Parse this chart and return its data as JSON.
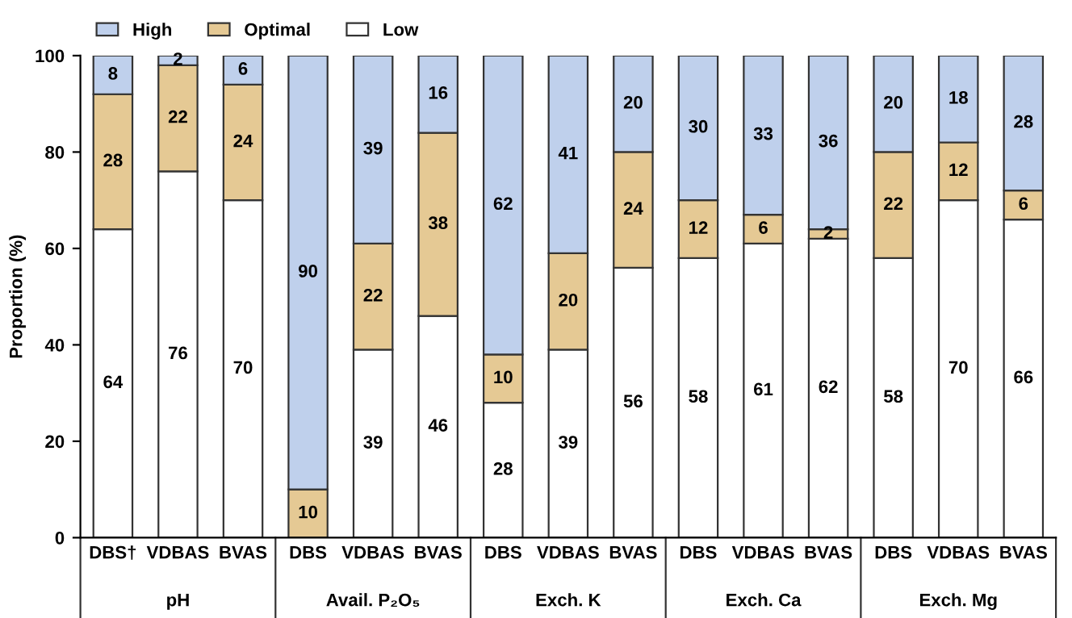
{
  "chart_data": {
    "type": "bar",
    "stacked": true,
    "ylabel": "Proportion (%)",
    "categories": [
      "DBS†",
      "VDBAS",
      "BVAS",
      "DBS",
      "VDBAS",
      "BVAS",
      "DBS",
      "VDBAS",
      "BVAS",
      "DBS",
      "VDBAS",
      "BVAS",
      "DBS",
      "VDBAS",
      "BVAS"
    ],
    "annotations": [
      "pH",
      "Avail. P₂O₅",
      "Exch. K",
      "Exch. Ca",
      "Exch. Mg"
    ],
    "series": [
      {
        "name": "Low",
        "color": "#ffffff",
        "values": [
          64,
          76,
          70,
          0,
          39,
          46,
          28,
          39,
          56,
          58,
          61,
          62,
          58,
          70,
          66
        ],
        "value_labels": [
          "64",
          "76",
          "70",
          null,
          "39",
          "46",
          "28",
          "39",
          "56",
          "58",
          "61",
          "62",
          "58",
          "70",
          "66"
        ]
      },
      {
        "name": "Optimal",
        "color": "#e5c994",
        "values": [
          28,
          22,
          24,
          10,
          22,
          38,
          10,
          20,
          24,
          12,
          6,
          2,
          22,
          12,
          6
        ],
        "value_labels": [
          "28",
          "22",
          "24",
          "10",
          "22",
          "38",
          "10",
          "20",
          "24",
          "12",
          "6",
          "2",
          "22",
          "12",
          "6"
        ]
      },
      {
        "name": "High",
        "color": "#bfd0ec",
        "values": [
          8,
          2,
          6,
          90,
          39,
          16,
          62,
          41,
          20,
          30,
          33,
          36,
          20,
          18,
          28
        ],
        "value_labels": [
          "8",
          "2",
          "6",
          "90",
          "39",
          "16",
          "62",
          "41",
          "20",
          "30",
          "33",
          "36",
          "20",
          "18",
          "28"
        ]
      }
    ],
    "ylim": [
      0,
      100
    ],
    "yticks": [
      0,
      20,
      40,
      60,
      80,
      100
    ],
    "grid": false,
    "legend": "top left"
  }
}
